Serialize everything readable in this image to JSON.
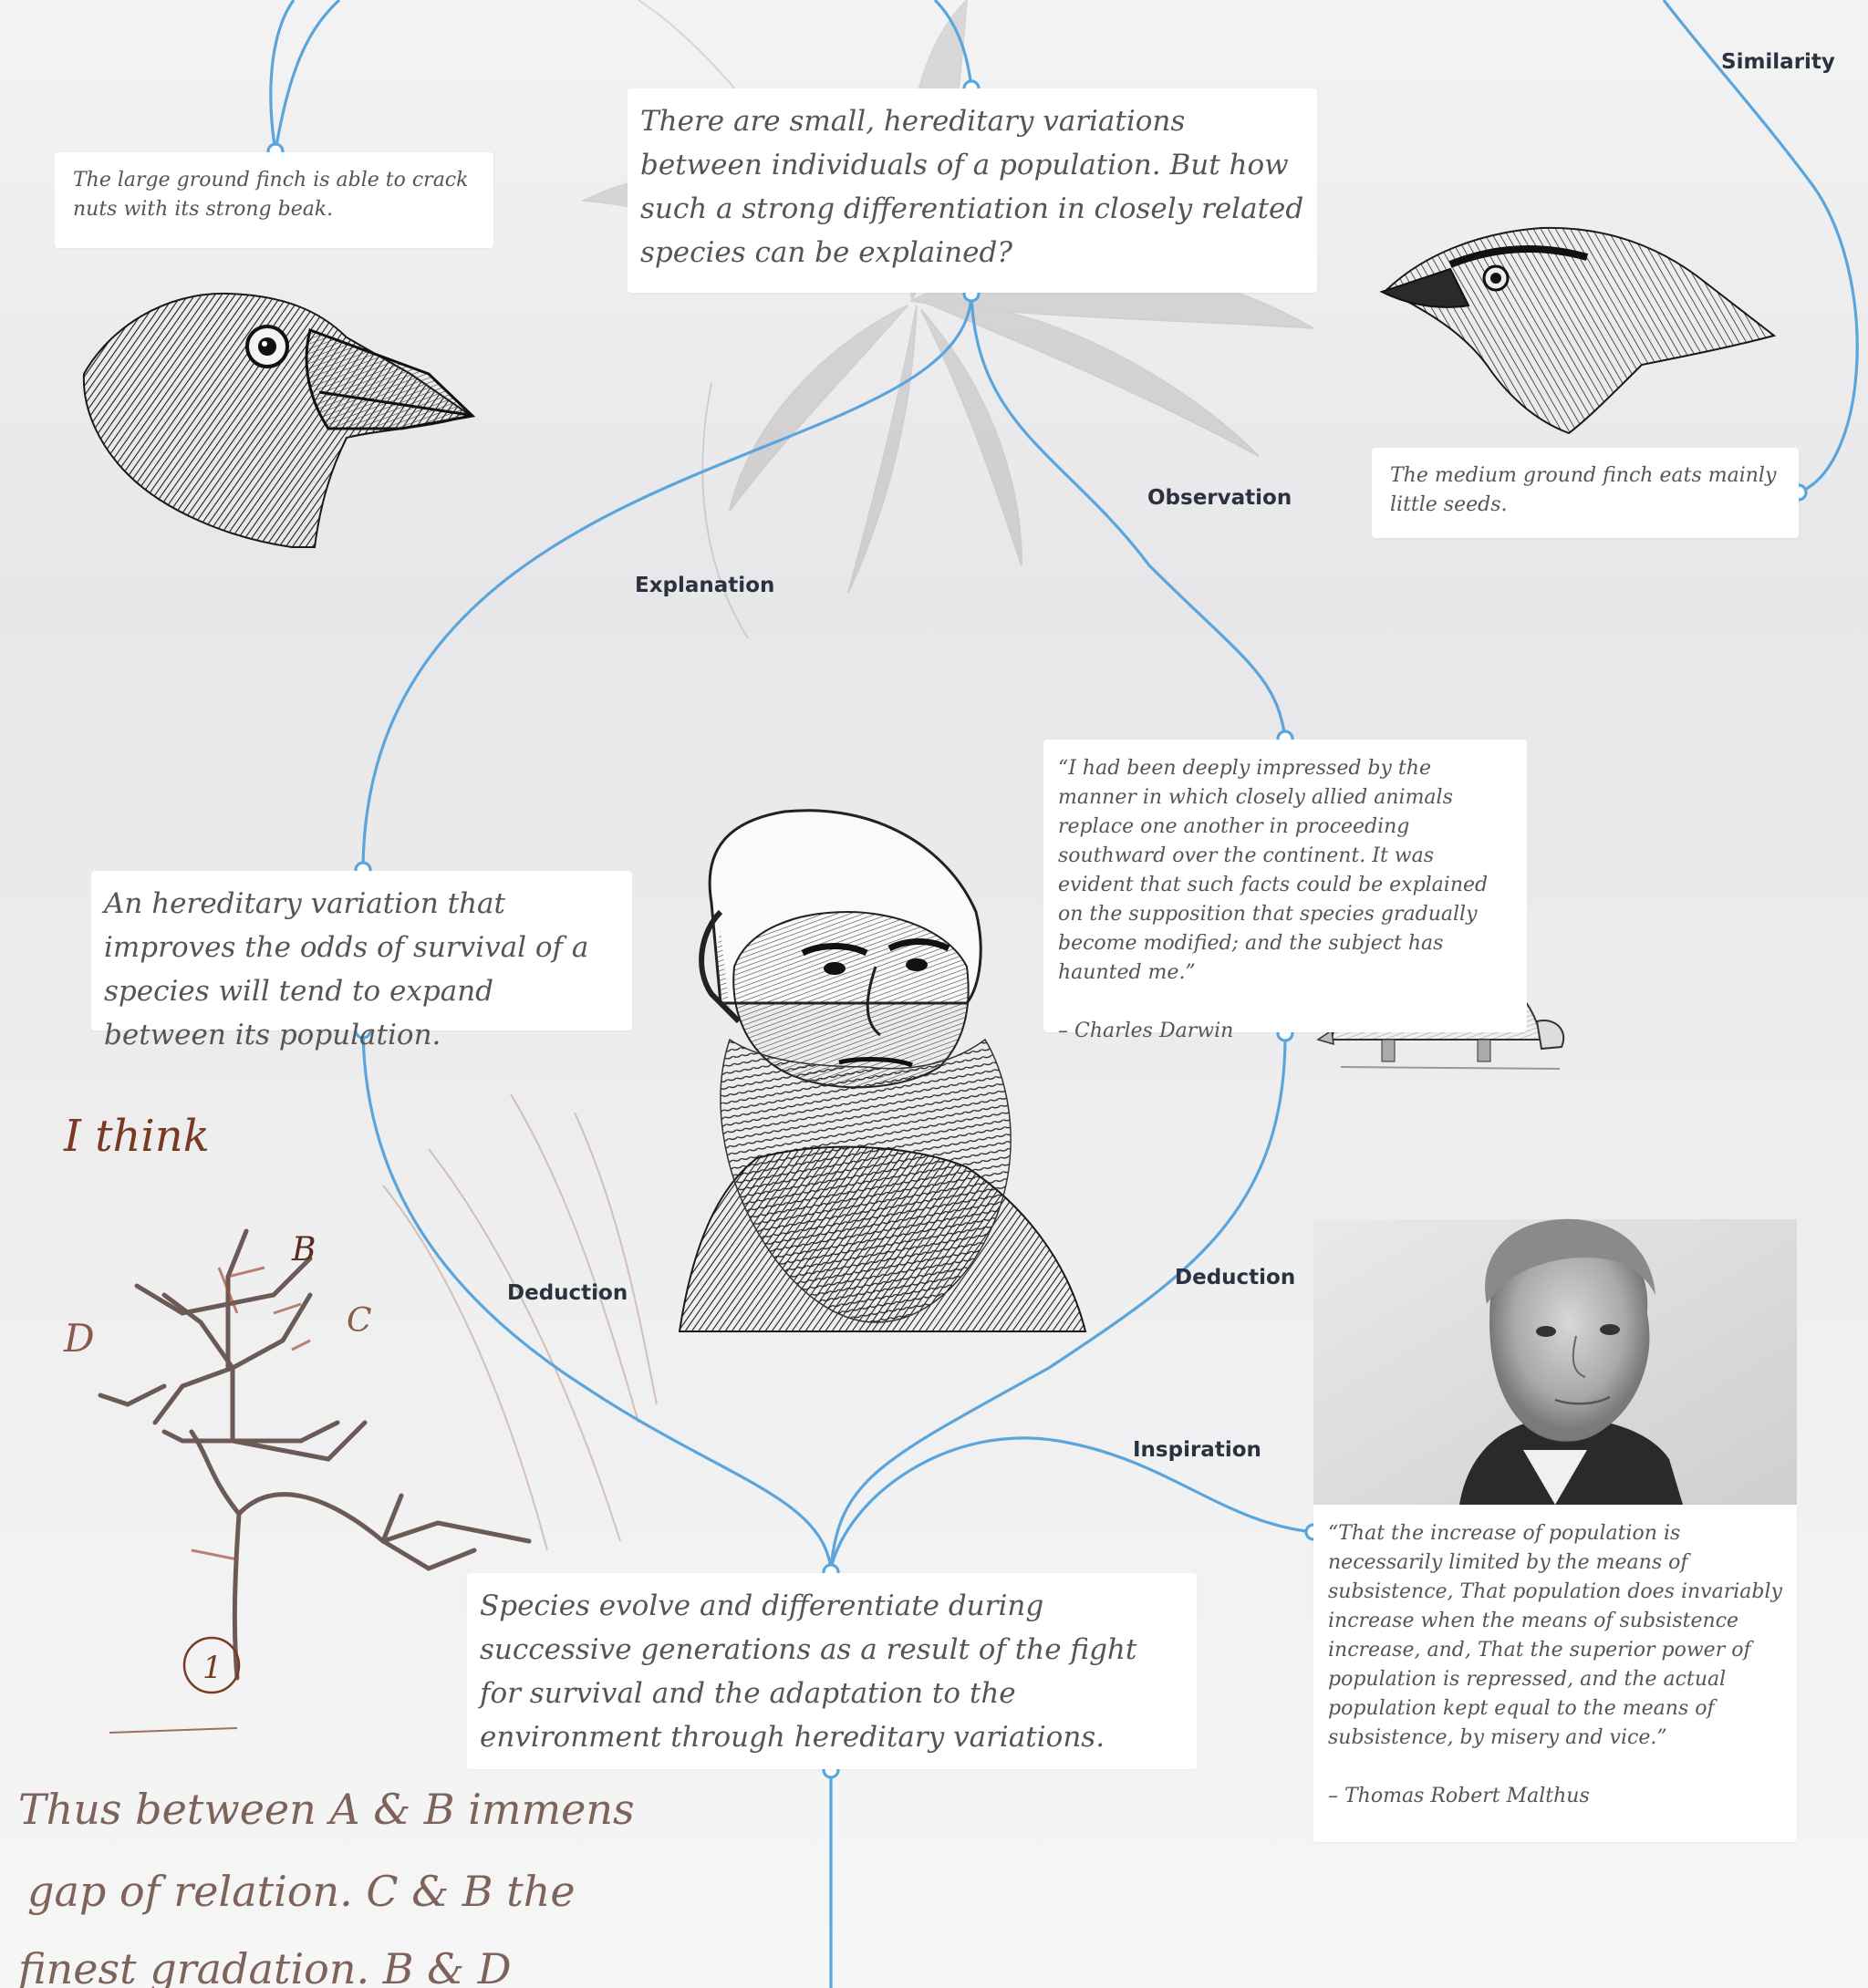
{
  "colors": {
    "connector": "#5aa5dc",
    "card_bg": "#ffffff",
    "card_text": "#555555",
    "label_text": "#2a3240",
    "ink": "#1e1e1e",
    "sepia": "#8a4a2e"
  },
  "nodes": {
    "question": "There are small, hereditary variations between individuals of a population. But how such a strong differentiation in closely related species can be explained?",
    "large_finch": "The large ground finch is able to crack nuts with its strong beak.",
    "medium_finch": "The medium ground finch eats mainly little seeds.",
    "hereditary_variation": "An hereditary variation that improves the odds of survival of a species will tend to expand between its population.",
    "darwin_quote": {
      "text": "“I had been deeply impressed by the manner in which closely allied animals replace one another in proceeding southward over the continent. It was evident that such facts could be explained on the supposition that species gradually become modified; and the subject has haunted me.”",
      "attribution": "– Charles Darwin"
    },
    "conclusion": "Species evolve and differentiate during successive generations as a result of the fight for survival and the adaptation to the environment through hereditary variations.",
    "malthus_quote": {
      "text": "“That the increase of population is necessarily limited by the means of subsistence, That population does invariably increase when the means of subsistence increase, and, That the superior power of population is repressed, and the actual population kept equal to the means of subsistence, by misery and vice.”",
      "attribution": "– Thomas Robert Malthus"
    }
  },
  "edge_labels": {
    "similarity": "Similarity",
    "observation": "Observation",
    "explanation": "Explanation",
    "deduction_left": "Deduction",
    "deduction_right": "Deduction",
    "inspiration": "Inspiration"
  },
  "sketch_text": {
    "i_think": "I think",
    "letter_b": "B",
    "letter_c": "C",
    "letter_d": "D",
    "number_1": "1",
    "line1": "Thus between A & B immens",
    "line2": "gap of relation. C & B the",
    "line3": "finest gradation. B & D"
  },
  "images": {
    "large_finch": "large-ground-finch-engraving",
    "medium_finch": "medium-ground-finch-engraving",
    "darwin": "charles-darwin-portrait-engraving",
    "malthus": "thomas-malthus-portrait",
    "armadillo": "glyptodon-engraving",
    "flower": "faded-flower-illustration",
    "tree_sketch": "darwin-tree-of-life-sketch"
  }
}
